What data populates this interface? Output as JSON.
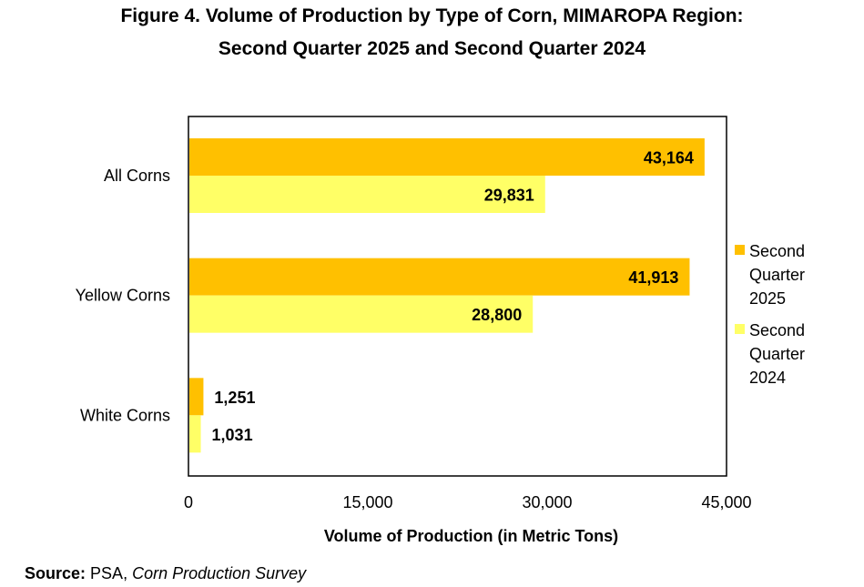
{
  "title_line1": "Figure 4. Volume of Production by Type of Corn, MIMAROPA Region:",
  "title_line2": "Second Quarter 2025 and Second Quarter 2024",
  "source": {
    "label": "Source:",
    "agency": "PSA,",
    "survey": "Corn Production Survey"
  },
  "chart_data": {
    "type": "bar",
    "orientation": "horizontal",
    "categories": [
      "All Corns",
      "Yellow Corns",
      "White Corns"
    ],
    "series": [
      {
        "name": "Second Quarter 2025",
        "values": [
          43164,
          41913,
          1251
        ],
        "labels": [
          "43,164",
          "41,913",
          "1,251"
        ],
        "color": "#FFC000"
      },
      {
        "name": "Second Quarter 2024",
        "values": [
          29831,
          28800,
          1031
        ],
        "labels": [
          "29,831",
          "28,800",
          "1,031"
        ],
        "color": "#FFFF66"
      }
    ],
    "xlabel": "Volume of Production (in Metric Tons)",
    "ylabel": "",
    "xlim": [
      0,
      45000
    ],
    "xticks": [
      0,
      15000,
      30000,
      45000
    ],
    "xtick_labels": [
      "0",
      "15,000",
      "30,000",
      "45,000"
    ],
    "legend": {
      "placement": "right",
      "entries": [
        {
          "lines": [
            "Second",
            "Quarter",
            "2025"
          ]
        },
        {
          "lines": [
            "Second",
            "Quarter",
            "2024"
          ]
        }
      ]
    },
    "grid": false
  }
}
